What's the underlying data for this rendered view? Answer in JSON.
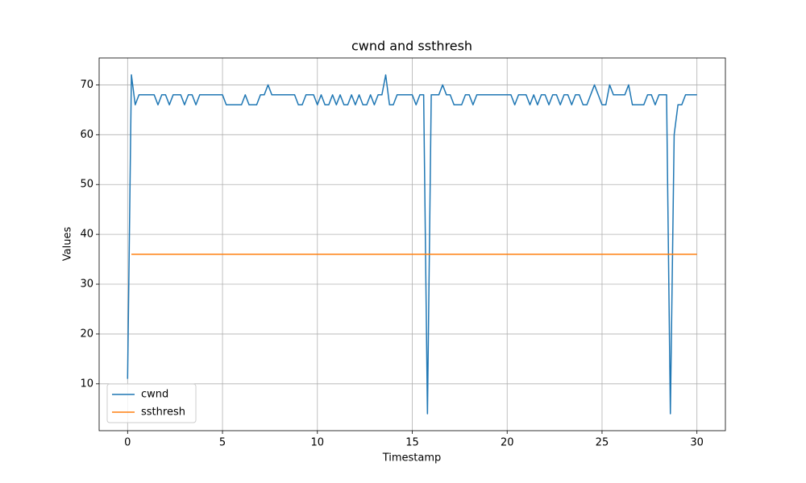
{
  "chart_data": {
    "type": "line",
    "title": "cwnd and ssthresh",
    "xlabel": "Timestamp",
    "ylabel": "Values",
    "x": [
      0,
      0.2,
      0.4,
      0.6,
      0.8,
      1.0,
      1.2,
      1.4,
      1.6,
      1.8,
      2.0,
      2.2,
      2.4,
      2.6,
      2.8,
      3.0,
      3.2,
      3.4,
      3.6,
      3.8,
      4.0,
      4.2,
      4.4,
      4.6,
      4.8,
      5.0,
      5.2,
      5.4,
      5.6,
      5.8,
      6.0,
      6.2,
      6.4,
      6.6,
      6.8,
      7.0,
      7.2,
      7.4,
      7.6,
      7.8,
      8.0,
      8.2,
      8.4,
      8.6,
      8.8,
      9.0,
      9.2,
      9.4,
      9.6,
      9.8,
      10.0,
      10.2,
      10.4,
      10.6,
      10.8,
      11.0,
      11.2,
      11.4,
      11.6,
      11.8,
      12.0,
      12.2,
      12.4,
      12.6,
      12.8,
      13.0,
      13.2,
      13.4,
      13.6,
      13.8,
      14.0,
      14.2,
      14.4,
      14.6,
      14.8,
      15.0,
      15.2,
      15.4,
      15.6,
      15.8,
      16.0,
      16.2,
      16.4,
      16.6,
      16.8,
      17.0,
      17.2,
      17.4,
      17.6,
      17.8,
      18.0,
      18.2,
      18.4,
      18.6,
      18.8,
      19.0,
      19.2,
      19.4,
      19.6,
      19.8,
      20.0,
      20.2,
      20.4,
      20.6,
      20.8,
      21.0,
      21.2,
      21.4,
      21.6,
      21.8,
      22.0,
      22.2,
      22.4,
      22.6,
      22.8,
      23.0,
      23.2,
      23.4,
      23.6,
      23.8,
      24.0,
      24.2,
      24.4,
      24.6,
      24.8,
      25.0,
      25.2,
      25.4,
      25.6,
      25.8,
      26.0,
      26.2,
      26.4,
      26.6,
      26.8,
      27.0,
      27.2,
      27.4,
      27.6,
      27.8,
      28.0,
      28.2,
      28.4,
      28.6,
      28.8,
      29.0,
      29.2,
      29.4,
      29.6,
      29.8,
      30.0
    ],
    "series": [
      {
        "name": "cwnd",
        "color": "#1f77b4",
        "values": [
          11,
          72,
          66,
          68,
          68,
          68,
          68,
          68,
          66,
          68,
          68,
          66,
          68,
          68,
          68,
          66,
          68,
          68,
          66,
          68,
          68,
          68,
          68,
          68,
          68,
          68,
          66,
          66,
          66,
          66,
          66,
          68,
          66,
          66,
          66,
          68,
          68,
          70,
          68,
          68,
          68,
          68,
          68,
          68,
          68,
          66,
          66,
          68,
          68,
          68,
          66,
          68,
          66,
          66,
          68,
          66,
          68,
          66,
          66,
          68,
          66,
          68,
          66,
          66,
          68,
          66,
          68,
          68,
          72,
          66,
          66,
          68,
          68,
          68,
          68,
          68,
          66,
          68,
          68,
          4,
          68,
          68,
          68,
          70,
          68,
          68,
          66,
          66,
          66,
          68,
          68,
          66,
          68,
          68,
          68,
          68,
          68,
          68,
          68,
          68,
          68,
          68,
          66,
          68,
          68,
          68,
          66,
          68,
          66,
          68,
          68,
          66,
          68,
          68,
          66,
          68,
          68,
          66,
          68,
          68,
          66,
          66,
          68,
          70,
          68,
          66,
          66,
          70,
          68,
          68,
          68,
          68,
          70,
          66,
          66,
          66,
          66,
          68,
          68,
          66,
          68,
          68,
          68,
          4,
          60,
          66,
          66,
          68,
          68,
          68,
          68
        ]
      },
      {
        "name": "ssthresh",
        "color": "#ff7f0e",
        "values": [
          null,
          36,
          36,
          36,
          36,
          36,
          36,
          36,
          36,
          36,
          36,
          36,
          36,
          36,
          36,
          36,
          36,
          36,
          36,
          36,
          36,
          36,
          36,
          36,
          36,
          36,
          36,
          36,
          36,
          36,
          36,
          36,
          36,
          36,
          36,
          36,
          36,
          36,
          36,
          36,
          36,
          36,
          36,
          36,
          36,
          36,
          36,
          36,
          36,
          36,
          36,
          36,
          36,
          36,
          36,
          36,
          36,
          36,
          36,
          36,
          36,
          36,
          36,
          36,
          36,
          36,
          36,
          36,
          36,
          36,
          36,
          36,
          36,
          36,
          36,
          36,
          36,
          36,
          36,
          36,
          36,
          36,
          36,
          36,
          36,
          36,
          36,
          36,
          36,
          36,
          36,
          36,
          36,
          36,
          36,
          36,
          36,
          36,
          36,
          36,
          36,
          36,
          36,
          36,
          36,
          36,
          36,
          36,
          36,
          36,
          36,
          36,
          36,
          36,
          36,
          36,
          36,
          36,
          36,
          36,
          36,
          36,
          36,
          36,
          36,
          36,
          36,
          36,
          36,
          36,
          36,
          36,
          36,
          36,
          36,
          36,
          36,
          36,
          36,
          36,
          36,
          36,
          36,
          36,
          36,
          36,
          36,
          36,
          36,
          36,
          36
        ]
      }
    ],
    "xlim": [
      -1.5,
      31.5
    ],
    "xticks": [
      0,
      5,
      10,
      15,
      20,
      25,
      30
    ],
    "ylim": [
      0.6,
      75.4
    ],
    "yticks": [
      10,
      20,
      30,
      40,
      50,
      60,
      70
    ],
    "grid": true,
    "legend": "lower left"
  }
}
